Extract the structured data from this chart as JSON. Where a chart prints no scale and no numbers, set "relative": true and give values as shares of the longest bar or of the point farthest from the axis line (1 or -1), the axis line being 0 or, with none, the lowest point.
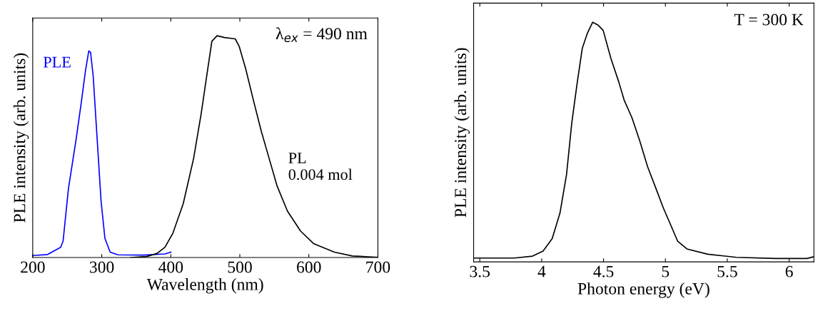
{
  "chart_data": [
    {
      "type": "line",
      "xlabel": "Wavelength (nm)",
      "ylabel": "PLE intensity (arb. units)",
      "relative": true,
      "xlim": [
        200,
        700
      ],
      "xticks": [
        200,
        300,
        400,
        500,
        600,
        700
      ],
      "annotations": [
        "λ$_{ex}$ = 490 nm"
      ],
      "series": [
        {
          "name": "PLE",
          "color": "#0000ff",
          "x": [
            200,
            221.5,
            240.4,
            244,
            251.7,
            263,
            270.6,
            276.3,
            281.2,
            283.8,
            287.6,
            293.3,
            299,
            304.6,
            312.2,
            323.5,
            361,
            391.5,
            400.2
          ],
          "values": [
            0.009,
            0.0135,
            0.046,
            0.074,
            0.31,
            0.536,
            0.705,
            0.84,
            0.932,
            0.925,
            0.818,
            0.536,
            0.255,
            0.086,
            0.024,
            0.012,
            0.011,
            0.016,
            0.024
          ]
        },
        {
          "name": "PL\n0.004 mol",
          "color": "#000000",
          "x": [
            342,
            365,
            380,
            391.5,
            402.8,
            418,
            433,
            444,
            452,
            459.5,
            467,
            478,
            493.4,
            499,
            508.5,
            520,
            531,
            542.5,
            554,
            569,
            588,
            606.7,
            637,
            663,
            700
          ],
          "values": [
            0.0,
            0.0045,
            0.018,
            0.046,
            0.108,
            0.243,
            0.446,
            0.649,
            0.818,
            0.975,
            1.0,
            0.992,
            0.986,
            0.953,
            0.851,
            0.705,
            0.57,
            0.446,
            0.322,
            0.209,
            0.119,
            0.063,
            0.024,
            0.007,
            0.001
          ]
        }
      ]
    },
    {
      "type": "line",
      "xlabel": "Photon energy (eV)",
      "ylabel": "PLE intensity (arb. units)",
      "relative": true,
      "xlim": [
        3.45,
        6.2
      ],
      "xticks": [
        3.5,
        4,
        4.5,
        5,
        5.5,
        6
      ],
      "annotations": [
        "T = 300 K"
      ],
      "series": [
        {
          "color": "#000000",
          "x": [
            3.451,
            3.779,
            3.926,
            4.011,
            4.085,
            4.148,
            4.201,
            4.243,
            4.285,
            4.328,
            4.37,
            4.412,
            4.454,
            4.497,
            4.56,
            4.623,
            4.666,
            4.73,
            4.793,
            4.856,
            4.92,
            4.983,
            5.046,
            5.099,
            5.173,
            5.342,
            5.574,
            5.891,
            6.144,
            6.196
          ],
          "values": [
            0.016,
            0.016,
            0.024,
            0.045,
            0.097,
            0.204,
            0.365,
            0.579,
            0.74,
            0.891,
            0.955,
            1.0,
            0.989,
            0.966,
            0.848,
            0.751,
            0.676,
            0.601,
            0.504,
            0.397,
            0.311,
            0.225,
            0.15,
            0.086,
            0.054,
            0.032,
            0.019,
            0.014,
            0.014,
            0.021
          ]
        }
      ]
    }
  ]
}
